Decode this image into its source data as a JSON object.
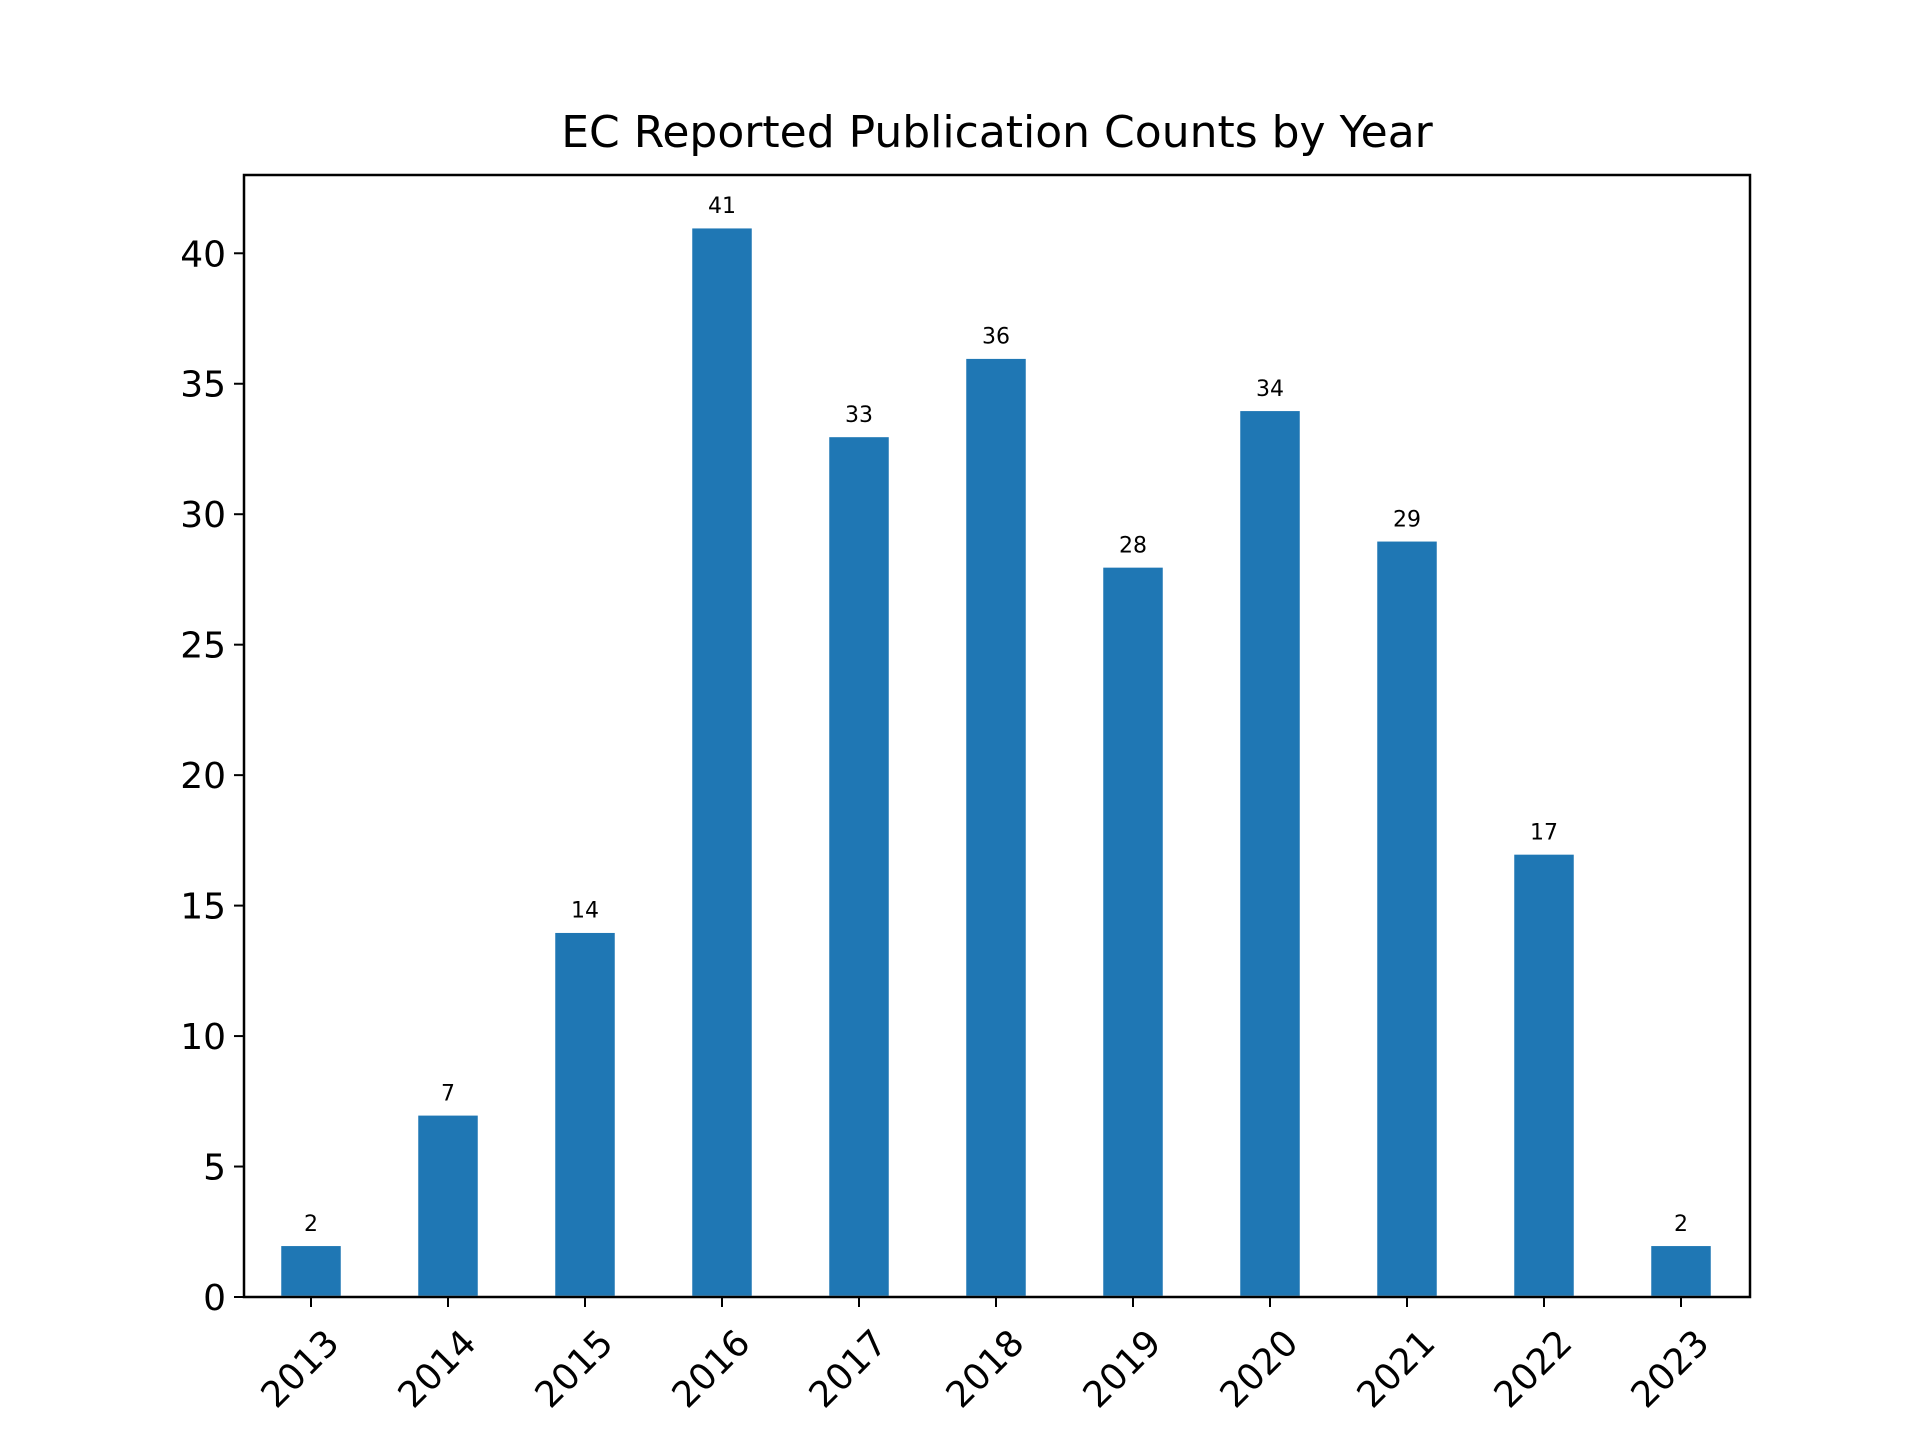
{
  "chart_data": {
    "type": "bar",
    "title": "EC Reported Publication Counts by Year",
    "xlabel": "",
    "ylabel": "",
    "categories": [
      "2013",
      "2014",
      "2015",
      "2016",
      "2017",
      "2018",
      "2019",
      "2020",
      "2021",
      "2022",
      "2023"
    ],
    "values": [
      2,
      7,
      14,
      41,
      33,
      36,
      28,
      34,
      29,
      17,
      2
    ],
    "data_labels": [
      "2",
      "7",
      "14",
      "41",
      "33",
      "36",
      "28",
      "34",
      "29",
      "17",
      "2"
    ],
    "ylim": [
      0,
      43
    ],
    "yticks": [
      0,
      5,
      10,
      15,
      20,
      25,
      30,
      35,
      40
    ],
    "ytick_labels": [
      "0",
      "5",
      "10",
      "15",
      "20",
      "25",
      "30",
      "35",
      "40"
    ],
    "xtick_rotation": 45,
    "grid": false,
    "legend": "none",
    "bar_color": "#1f77b4",
    "bar_edge_color": "#ffffff"
  }
}
